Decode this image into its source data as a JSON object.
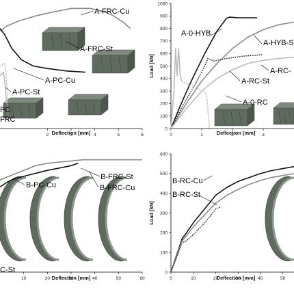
{
  "chart_data": [
    {
      "type": "line",
      "panel": "top-left",
      "xlabel": "Deflection [mm]",
      "ylabel": "",
      "xlim": [
        0,
        6
      ],
      "ylim": [
        0,
        100
      ],
      "x_ticks": [
        "2",
        "3",
        "4",
        "5",
        "6"
      ],
      "y_ticks": [],
      "annotations": [
        "A-FRC-Cu",
        "A-FRC-St",
        "A-PC-Cu",
        "A-PC-St",
        "PC",
        "FRC"
      ],
      "series": [
        {
          "label_ref": "A-FRC-Cu",
          "color": "#8a8a8a",
          "style": "solid",
          "x": [
            0,
            0.3,
            0.8,
            1.5,
            2.2,
            3.0,
            3.8,
            4.3,
            4.8,
            5.2,
            5.5
          ],
          "y": [
            78,
            82,
            86,
            90,
            93,
            96,
            96,
            94,
            90,
            85,
            80
          ]
        },
        {
          "label_ref": "A-FRC-St",
          "color": "#111111",
          "style": "solid",
          "x": [
            0,
            0.2,
            0.5,
            0.9,
            1.4,
            2.0,
            2.8,
            3.6
          ],
          "y": [
            80,
            75,
            64,
            55,
            50,
            48,
            46,
            45
          ]
        },
        {
          "label_ref": "A-PC-Cu",
          "color": "#bbbbbb",
          "style": "dotted",
          "x": [
            0,
            0.2,
            0.25,
            0.3,
            0.35
          ],
          "y": [
            50,
            52,
            46,
            30,
            5
          ]
        },
        {
          "label_ref": "A-PC-St",
          "color": "#bbbbbb",
          "style": "solid",
          "x": [
            0,
            0.15,
            0.2,
            0.28
          ],
          "y": [
            42,
            45,
            38,
            20
          ]
        }
      ]
    },
    {
      "type": "line",
      "panel": "top-right",
      "xlabel": "Deflection [mm]",
      "ylabel": "Load [kN]",
      "xlim": [
        0,
        4
      ],
      "ylim": [
        0,
        1000
      ],
      "x_ticks": [
        "0",
        "1",
        "2",
        "3"
      ],
      "y_ticks": [
        "0",
        "100",
        "200",
        "300",
        "400",
        "500",
        "600",
        "700",
        "800",
        "900",
        "1000"
      ],
      "annotations": [
        "A-0-HYB",
        "A-HYB-St",
        "A-RC-St",
        "A-RC-",
        "A-0-RC"
      ],
      "series": [
        {
          "label_ref": "A-0-HYB",
          "color": "#111111",
          "style": "solid",
          "x": [
            0,
            0.3,
            0.7,
            1.1,
            1.5,
            1.8,
            1.9,
            2.2,
            2.8
          ],
          "y": [
            0,
            180,
            400,
            600,
            780,
            880,
            890,
            885,
            885
          ]
        },
        {
          "label_ref": "A-HYB-St",
          "color": "#8a8a8a",
          "style": "solid",
          "x": [
            0,
            0.5,
            1.0,
            1.5,
            2.0,
            2.5,
            3.0,
            3.5,
            4.0
          ],
          "y": [
            0,
            200,
            380,
            520,
            640,
            730,
            790,
            830,
            850
          ]
        },
        {
          "label_ref": "A-RC-St",
          "color": "#333333",
          "style": "dotted",
          "x": [
            0,
            0.4,
            0.8,
            1.1,
            1.2,
            1.4,
            1.8,
            2.4,
            3.0
          ],
          "y": [
            0,
            190,
            360,
            500,
            560,
            540,
            560,
            580,
            590
          ]
        },
        {
          "label_ref": "A-RC-",
          "color": "#bbbbbb",
          "style": "solid",
          "x": [
            0,
            0.5,
            1.0,
            1.5,
            2.0,
            2.5,
            3.0,
            3.5,
            4.0
          ],
          "y": [
            0,
            160,
            300,
            400,
            470,
            520,
            545,
            560,
            570
          ]
        },
        {
          "label_ref": "A-0-RC",
          "color": "#bbbbbb",
          "style": "solid",
          "x": [
            0,
            0.1,
            0.15,
            0.2,
            0.25,
            0.3,
            0.35
          ],
          "y": [
            0,
            300,
            640,
            420,
            640,
            430,
            380
          ]
        },
        {
          "label_ref": "A-0-RC",
          "color": "#bbbbbb",
          "style": "dotted",
          "x": [
            0.35,
            0.5,
            0.8,
            1.0,
            1.15,
            1.2,
            1.25
          ],
          "y": [
            380,
            360,
            330,
            300,
            280,
            150,
            0
          ]
        }
      ]
    },
    {
      "type": "line",
      "panel": "bottom-left",
      "xlabel": "Deflection [mm]",
      "ylabel": "",
      "xlim": [
        0,
        60
      ],
      "ylim": [
        0,
        100
      ],
      "x_ticks": [
        "10",
        "20",
        "30",
        "40",
        "50",
        "60"
      ],
      "y_ticks": [],
      "annotations": [
        "B-FRC-St",
        "B-PC-Cu",
        "B-FRC-Cu",
        "C-St"
      ],
      "series": [
        {
          "label_ref": "B-FRC-Cu",
          "color": "#8a8a8a",
          "style": "solid",
          "x": [
            0,
            5,
            10,
            15,
            20,
            25,
            30,
            35,
            40,
            45,
            50,
            55,
            60
          ],
          "y": [
            78,
            82,
            86,
            90,
            92,
            93,
            94,
            95,
            95,
            95,
            95,
            95,
            95
          ]
        },
        {
          "label_ref": "B-FRC-St",
          "color": "#111111",
          "style": "solid",
          "x": [
            0,
            3,
            6,
            8,
            12,
            16,
            20,
            25,
            30,
            33
          ],
          "y": [
            72,
            76,
            79,
            80,
            82,
            84,
            86,
            88,
            90,
            92
          ]
        }
      ]
    },
    {
      "type": "line",
      "panel": "bottom-right",
      "xlabel": "Deflection [mm]",
      "ylabel": "Load [kN]",
      "xlim": [
        0,
        55
      ],
      "ylim": [
        0,
        600
      ],
      "x_ticks": [
        "0",
        "10",
        "20",
        "30",
        "40",
        "50"
      ],
      "y_ticks": [
        "0",
        "100",
        "200",
        "300",
        "400",
        "500",
        "600"
      ],
      "annotations": [
        "B-RC-Cu",
        "B-RC-St"
      ],
      "series": [
        {
          "label_ref": "B-RC-Cu",
          "color": "#111111",
          "style": "solid",
          "x": [
            0,
            5,
            7,
            10,
            15,
            20,
            25,
            30,
            35,
            40,
            45,
            50,
            55
          ],
          "y": [
            0,
            170,
            200,
            250,
            320,
            390,
            430,
            460,
            480,
            500,
            515,
            525,
            535
          ]
        },
        {
          "label_ref": "B-RC-Cu",
          "color": "#8a8a8a",
          "style": "solid",
          "x": [
            0,
            5,
            7,
            10,
            15,
            20,
            25,
            30,
            35,
            40,
            45,
            50,
            55
          ],
          "y": [
            0,
            160,
            185,
            230,
            290,
            350,
            390,
            420,
            445,
            465,
            480,
            490,
            500
          ]
        },
        {
          "label_ref": "B-RC-St",
          "color": "#333333",
          "style": "dotted",
          "x": [
            0,
            5,
            7,
            10,
            15,
            18,
            20,
            22
          ],
          "y": [
            0,
            150,
            160,
            190,
            250,
            290,
            320,
            330
          ]
        }
      ]
    }
  ]
}
